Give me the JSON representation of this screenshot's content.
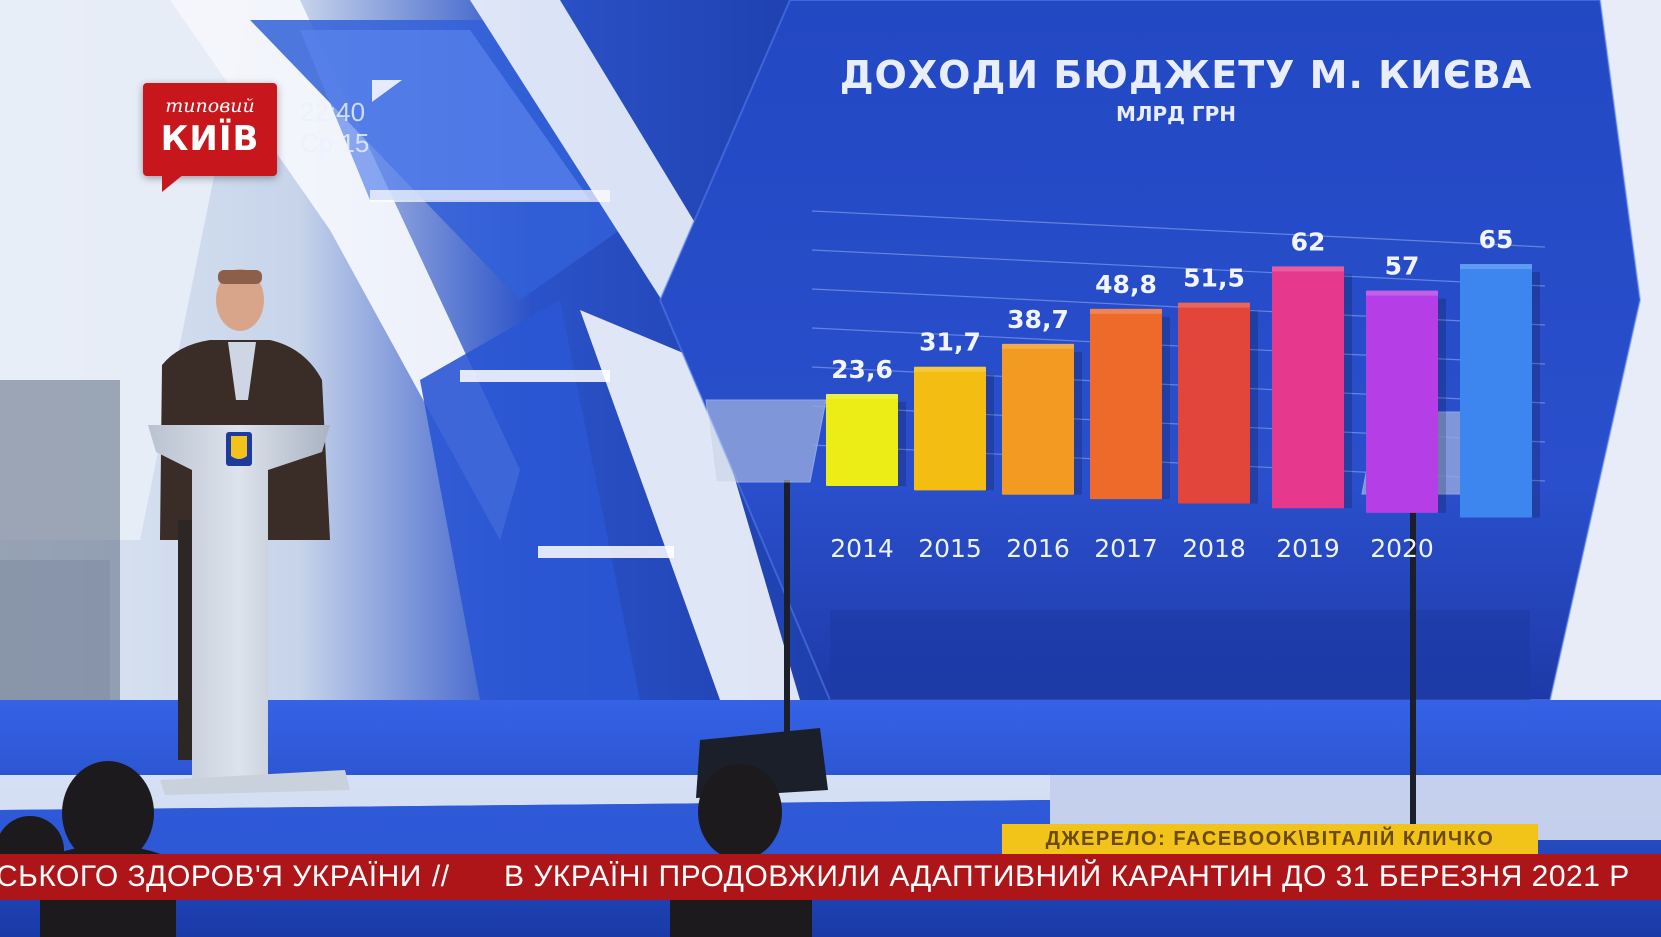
{
  "broadcast": {
    "channel_logo_small": "типовий",
    "channel_logo_big": "КИЇВ",
    "clock_time": "22:40",
    "clock_day": "Ср 15",
    "source": "ДЖЕРЕЛО: FACEBOOK\\ВІТАЛІЙ КЛИЧКО",
    "ticker_left": "СЬКОГО ЗДОРОВ'Я УКРАЇНИ",
    "ticker_separator": "//",
    "ticker_right": "В УКРАЇНІ ПРОДОВЖИЛИ АДАПТИВНИЙ КАРАНТИН ДО 31 БЕРЕЗНЯ 2021 Р",
    "colors": {
      "logo_red": "#c8161d",
      "ticker_red": "#ad1519",
      "source_yellow": "#f2c318",
      "stage_blue": "#1b3fb0"
    }
  },
  "chart_data": {
    "type": "bar",
    "title": "ДОХОДИ БЮДЖЕТУ М. КИЄВА",
    "subtitle": "МЛРД ГРН",
    "categories": [
      "2014",
      "2015",
      "2016",
      "2017",
      "2018",
      "2019",
      "2020"
    ],
    "values": [
      23.6,
      31.7,
      38.7,
      48.8,
      51.5,
      62,
      57
    ],
    "value_labels": [
      "23,6",
      "31,7",
      "38,7",
      "48,8",
      "51,5",
      "62",
      "57"
    ],
    "extra_bar_label": "65",
    "extra_bar_value": 65,
    "bar_colors": [
      "#ecec16",
      "#f3bd12",
      "#f29a21",
      "#ee6a2a",
      "#e2453a",
      "#e6398e",
      "#b63ee6",
      "#3d86f0"
    ],
    "ylim": [
      0,
      70
    ],
    "grid": true,
    "legend": "none"
  }
}
